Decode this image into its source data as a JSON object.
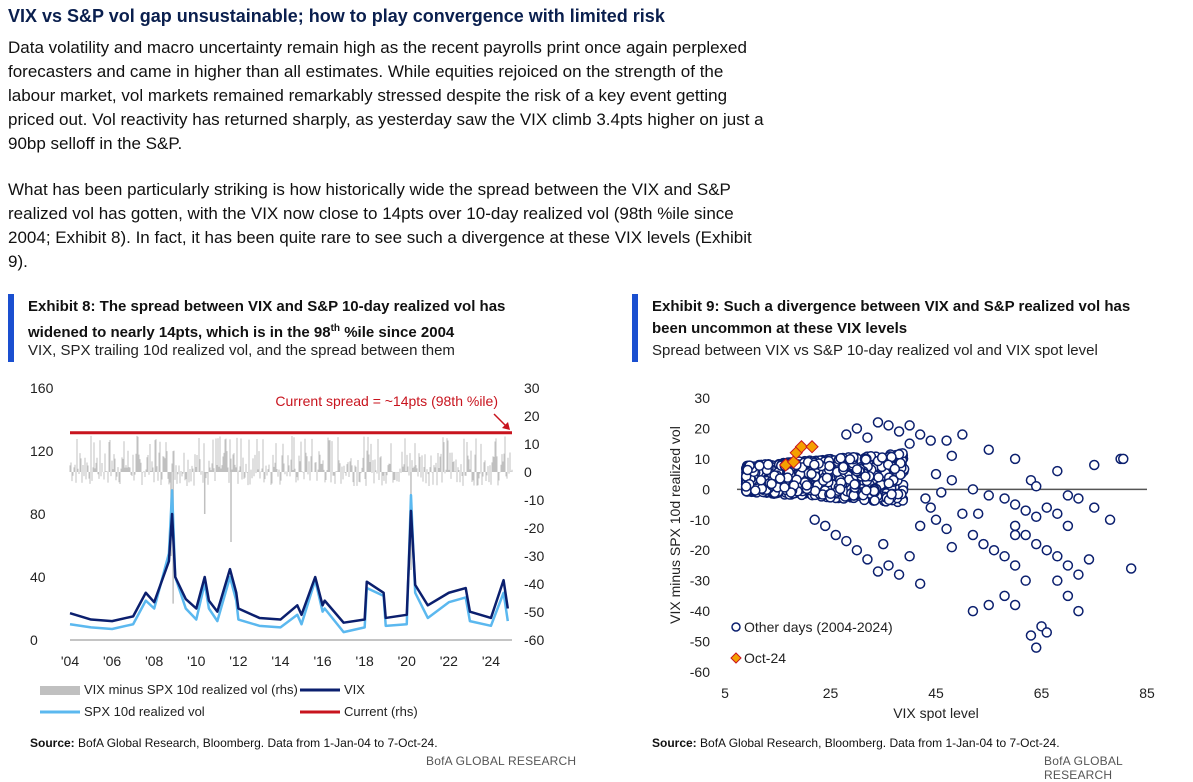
{
  "title": "VIX vs S&P vol gap unsustainable; how to play convergence with limited risk",
  "para1": "Data volatility and macro uncertainty remain high as the recent payrolls print once again perplexed forecasters and came in higher than all estimates. While equities rejoiced on the strength of the labour market, vol markets remained remarkably stressed despite the risk of a key event getting priced out. Vol reactivity has returned sharply, as yesterday saw the VIX climb 3.4pts higher on just a 90bp selloff in the S&P.",
  "para2": "What has been particularly striking is how historically wide the spread between the VIX and S&P realized vol has gotten, with the VIX now close to 14pts over 10-day realized vol (98th %ile since 2004; Exhibit 8). In fact, it has been quite rare to see such a divergence at these VIX levels (Exhibit 9).",
  "exhibit8": {
    "title_line1": "Exhibit 8: The spread between VIX and S&P 10-day realized vol has",
    "title_line2_pre": "widened to nearly 14pts, which is in the 98",
    "title_line2_sup": "th",
    "title_line2_post": " %ile since 2004",
    "subtitle": "VIX, SPX trailing 10d realized vol, and the spread between them",
    "source_label": "Source:",
    "source_text": " BofA Global Research, Bloomberg. Data from 1-Jan-04 to 7-Oct-24.",
    "brand": "BofA GLOBAL RESEARCH"
  },
  "exhibit9": {
    "title_line1": "Exhibit 9: Such a divergence between VIX and S&P realized vol has",
    "title_line2": "been uncommon at these VIX levels",
    "subtitle": "Spread between VIX vs S&P 10-day realized vol and VIX spot level",
    "source_label": "Source:",
    "source_text": " BofA Global Research, Bloomberg. Data from 1-Jan-04 to 7-Oct-24.",
    "brand": "BofA GLOBAL RESEARCH"
  },
  "chart_data": [
    {
      "type": "line",
      "title": "",
      "x_ticks": [
        "'04",
        "'06",
        "'08",
        "'10",
        "'12",
        "'14",
        "'16",
        "'18",
        "'20",
        "'22",
        "'24"
      ],
      "y_left_ticks": [
        "0",
        "40",
        "80",
        "120",
        "160"
      ],
      "y_left_range": [
        0,
        160
      ],
      "y_right_ticks": [
        "-60",
        "-50",
        "-40",
        "-30",
        "-20",
        "-10",
        "0",
        "10",
        "20",
        "30"
      ],
      "y_right_range": [
        -60,
        30
      ],
      "annotation": "Current spread = ~14pts (98th %ile)",
      "legend": [
        {
          "label": "VIX minus SPX 10d realized vol (rhs)",
          "color": "#c0c0c0"
        },
        {
          "label": "VIX",
          "color": "#0b1f6e"
        },
        {
          "label": "SPX 10d realized vol",
          "color": "#5bb8ef"
        },
        {
          "label": "Current (rhs)",
          "color": "#c8141e"
        }
      ],
      "legend_placement": "bottom",
      "current_spread_rhs": 14,
      "series": [
        {
          "name": "VIX",
          "color": "#0b1f6e",
          "x": [
            2004,
            2005,
            2006,
            2007,
            2007.6,
            2008,
            2008.7,
            2008.85,
            2009,
            2009.5,
            2010,
            2010.4,
            2010.6,
            2011,
            2011.6,
            2011.9,
            2012,
            2013,
            2014,
            2014.8,
            2015,
            2015.65,
            2016,
            2016.1,
            2017,
            2018,
            2018.1,
            2018.9,
            2019,
            2020,
            2020.2,
            2020.4,
            2021,
            2022,
            2022.8,
            2023,
            2024,
            2024.6,
            2024.8
          ],
          "y": [
            17,
            13,
            12,
            15,
            30,
            24,
            50,
            80,
            40,
            26,
            20,
            40,
            25,
            18,
            45,
            30,
            20,
            14,
            13,
            22,
            16,
            40,
            22,
            25,
            11,
            13,
            37,
            30,
            14,
            16,
            82,
            35,
            22,
            30,
            33,
            18,
            14,
            38,
            20
          ]
        },
        {
          "name": "SPX 10d realized vol",
          "color": "#5bb8ef",
          "x": [
            2004,
            2005,
            2006,
            2007,
            2007.6,
            2008,
            2008.7,
            2008.85,
            2009,
            2009.5,
            2010,
            2010.4,
            2010.6,
            2011,
            2011.6,
            2011.9,
            2012,
            2013,
            2014,
            2014.8,
            2015,
            2015.65,
            2016,
            2016.1,
            2017,
            2018,
            2018.1,
            2018.9,
            2019,
            2020,
            2020.2,
            2020.4,
            2021,
            2022,
            2022.8,
            2023,
            2024,
            2024.6,
            2024.8
          ],
          "y": [
            10,
            8,
            7,
            10,
            25,
            20,
            55,
            95,
            40,
            20,
            13,
            36,
            20,
            12,
            40,
            25,
            13,
            9,
            8,
            16,
            10,
            38,
            18,
            20,
            5,
            8,
            33,
            28,
            9,
            10,
            92,
            30,
            14,
            24,
            27,
            12,
            9,
            30,
            12
          ]
        }
      ],
      "spread_series_rhs": {
        "name": "VIX minus SPX 10d realized vol (rhs)",
        "color": "#c0c0c0",
        "typical_range": [
          -5,
          10
        ],
        "min": -47
      }
    },
    {
      "type": "scatter",
      "title": "",
      "xlabel": "VIX spot level",
      "ylabel": "VIX minus SPX 10d realized vol",
      "xlim": [
        5,
        85
      ],
      "ylim": [
        -60,
        30
      ],
      "x_ticks": [
        "5",
        "25",
        "45",
        "65",
        "85"
      ],
      "y_ticks": [
        "-60",
        "-50",
        "-40",
        "-30",
        "-20",
        "-10",
        "0",
        "10",
        "20",
        "30"
      ],
      "legend": [
        {
          "label": "Other days (2004-2024)",
          "color": "#0b1f6e",
          "marker": "circle-open"
        },
        {
          "label": "Oct-24",
          "color": "#f5a000",
          "marker": "diamond"
        }
      ],
      "legend_placement": "bottom-left",
      "series": [
        {
          "name": "Oct-24",
          "color": "#f5a000",
          "points": [
            [
              16.5,
              8
            ],
            [
              18.0,
              9
            ],
            [
              18.5,
              12
            ],
            [
              19.5,
              14
            ],
            [
              21.5,
              14
            ]
          ]
        },
        {
          "name": "Other days (2004-2024)",
          "color": "#0b1f6e",
          "points": [
            [
              28,
              18
            ],
            [
              30,
              20
            ],
            [
              32,
              17
            ],
            [
              34,
              22
            ],
            [
              36,
              21
            ],
            [
              38,
              19
            ],
            [
              40,
              21
            ],
            [
              40,
              15
            ],
            [
              42,
              18
            ],
            [
              44,
              16
            ],
            [
              47,
              16
            ],
            [
              48,
              11
            ],
            [
              50,
              18
            ],
            [
              55,
              13
            ],
            [
              60,
              10
            ],
            [
              63,
              3
            ],
            [
              64,
              1
            ],
            [
              68,
              6
            ],
            [
              70,
              -2
            ],
            [
              75,
              8
            ],
            [
              80,
              10
            ],
            [
              80.5,
              10
            ],
            [
              45,
              5
            ],
            [
              48,
              3
            ],
            [
              52,
              0
            ],
            [
              55,
              -2
            ],
            [
              58,
              -3
            ],
            [
              60,
              -5
            ],
            [
              62,
              -7
            ],
            [
              64,
              -9
            ],
            [
              66,
              -6
            ],
            [
              68,
              -8
            ],
            [
              70,
              -12
            ],
            [
              72,
              -3
            ],
            [
              75,
              -6
            ],
            [
              78,
              -10
            ],
            [
              82,
              -26
            ],
            [
              60,
              -12
            ],
            [
              62,
              -15
            ],
            [
              64,
              -18
            ],
            [
              66,
              -20
            ],
            [
              68,
              -22
            ],
            [
              70,
              -25
            ],
            [
              72,
              -28
            ],
            [
              74,
              -23
            ],
            [
              52,
              -15
            ],
            [
              54,
              -18
            ],
            [
              56,
              -20
            ],
            [
              58,
              -22
            ],
            [
              60,
              -25
            ],
            [
              62,
              -30
            ],
            [
              58,
              -35
            ],
            [
              60,
              -38
            ],
            [
              55,
              -38
            ],
            [
              52,
              -40
            ],
            [
              65,
              -45
            ],
            [
              66,
              -47
            ],
            [
              63,
              -48
            ],
            [
              64,
              -52
            ],
            [
              68,
              -30
            ],
            [
              70,
              -35
            ],
            [
              72,
              -40
            ],
            [
              60,
              -15
            ],
            [
              42,
              -31
            ],
            [
              40,
              -22
            ],
            [
              38,
              -28
            ],
            [
              36,
              -25
            ],
            [
              34,
              -27
            ],
            [
              32,
              -23
            ],
            [
              30,
              -20
            ],
            [
              28,
              -17
            ],
            [
              26,
              -15
            ],
            [
              24,
              -12
            ],
            [
              22,
              -10
            ],
            [
              35,
              -18
            ],
            [
              45,
              -10
            ],
            [
              50,
              -8
            ],
            [
              47,
              -13
            ],
            [
              42,
              -12
            ],
            [
              44,
              -6
            ],
            [
              43,
              -3
            ],
            [
              46,
              -1
            ],
            [
              48,
              -19
            ],
            [
              53,
              -8
            ]
          ]
        }
      ]
    }
  ]
}
